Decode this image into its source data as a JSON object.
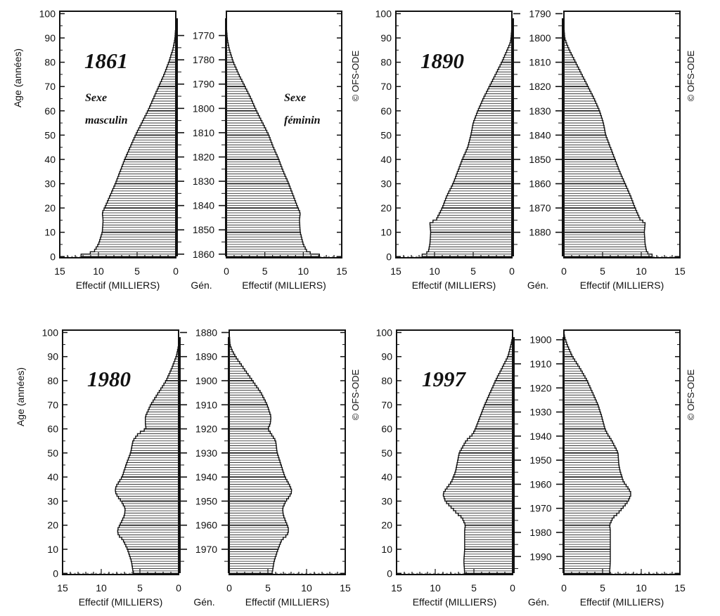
{
  "common": {
    "age_axis_title": "Age (années)",
    "effectif_label": "Effectif (MILLIERS)",
    "gen_label": "Gén.",
    "copyright": "© OFS-ODE",
    "age_ticks": [
      0,
      10,
      20,
      30,
      40,
      50,
      60,
      70,
      80,
      90,
      100
    ],
    "effectif_ticks": [
      15,
      10,
      5,
      0
    ]
  },
  "chart_data": [
    {
      "type": "bar",
      "title": "1861",
      "year": 1861,
      "male_label": [
        "Sexe",
        "masculin"
      ],
      "female_label": [
        "Sexe",
        "féminin"
      ],
      "ylabel": "Age (années)",
      "xlabel": "Effectif (MILLIERS)",
      "ylim": [
        0,
        100
      ],
      "xlim": [
        0,
        15
      ],
      "generation_ticks": [
        1770,
        1780,
        1790,
        1800,
        1810,
        1820,
        1830,
        1840,
        1850,
        1860
      ],
      "age_knots": [
        0,
        1,
        2,
        5,
        10,
        15,
        18,
        20,
        25,
        30,
        35,
        40,
        45,
        50,
        55,
        60,
        65,
        70,
        75,
        80,
        85,
        88,
        90,
        95,
        100
      ],
      "series": [
        {
          "name": "Sexe masculin",
          "values": [
            13.0,
            11.5,
            10.6,
            10.0,
            9.5,
            9.4,
            9.5,
            9.2,
            8.5,
            7.8,
            7.2,
            6.6,
            5.9,
            5.2,
            4.4,
            3.6,
            2.9,
            2.2,
            1.5,
            0.9,
            0.4,
            0.2,
            0.1,
            0.0,
            0.0
          ]
        },
        {
          "name": "Sexe féminin",
          "values": [
            12.9,
            11.3,
            10.5,
            10.0,
            9.6,
            9.5,
            9.6,
            9.3,
            8.7,
            8.1,
            7.4,
            6.8,
            6.1,
            5.5,
            4.7,
            3.9,
            3.2,
            2.4,
            1.6,
            0.9,
            0.4,
            0.2,
            0.1,
            0.0,
            0.0
          ]
        }
      ]
    },
    {
      "type": "bar",
      "title": "1890",
      "year": 1890,
      "ylabel": "Age (années)",
      "xlabel": "Effectif (MILLIERS)",
      "ylim": [
        0,
        100
      ],
      "xlim": [
        0,
        15
      ],
      "generation_ticks": [
        1790,
        1800,
        1810,
        1820,
        1830,
        1840,
        1850,
        1860,
        1870,
        1880
      ],
      "age_knots": [
        0,
        1,
        2,
        5,
        10,
        14,
        15,
        20,
        25,
        30,
        35,
        40,
        45,
        50,
        55,
        60,
        65,
        70,
        75,
        80,
        85,
        88,
        90,
        95,
        100
      ],
      "series": [
        {
          "name": "Sexe masculin",
          "values": [
            12.0,
            11.2,
            10.8,
            10.6,
            10.5,
            10.6,
            9.8,
            9.0,
            8.4,
            7.6,
            7.0,
            6.4,
            5.7,
            5.3,
            5.0,
            4.4,
            3.7,
            2.9,
            2.1,
            1.3,
            0.6,
            0.2,
            0.1,
            0.0,
            0.0
          ]
        },
        {
          "name": "Sexe féminin",
          "values": [
            11.8,
            11.0,
            10.7,
            10.5,
            10.4,
            10.5,
            9.9,
            9.2,
            8.6,
            7.9,
            7.2,
            6.6,
            6.0,
            5.4,
            5.1,
            4.6,
            3.9,
            3.1,
            2.3,
            1.5,
            0.7,
            0.3,
            0.1,
            0.0,
            0.0
          ]
        }
      ]
    },
    {
      "type": "bar",
      "title": "1980",
      "year": 1980,
      "ylabel": "Age (années)",
      "xlabel": "Effectif (MILLIERS)",
      "ylim": [
        0,
        100
      ],
      "xlim": [
        0,
        15
      ],
      "generation_ticks": [
        1880,
        1890,
        1900,
        1910,
        1920,
        1930,
        1940,
        1950,
        1960,
        1970
      ],
      "age_knots": [
        0,
        1,
        5,
        10,
        14,
        16,
        18,
        20,
        24,
        27,
        30,
        32,
        34,
        36,
        40,
        45,
        50,
        55,
        58,
        60,
        62,
        65,
        70,
        75,
        80,
        85,
        90,
        93,
        95,
        100
      ],
      "series": [
        {
          "name": "Sexe masculin",
          "values": [
            5.8,
            5.9,
            6.1,
            6.6,
            7.2,
            7.8,
            7.9,
            7.6,
            7.0,
            6.9,
            7.4,
            7.9,
            8.2,
            8.1,
            7.3,
            6.8,
            6.2,
            5.9,
            5.2,
            4.2,
            4.3,
            4.3,
            3.6,
            2.6,
            1.6,
            0.9,
            0.3,
            0.1,
            0.0,
            0.0
          ]
        },
        {
          "name": "Sexe féminin",
          "values": [
            5.5,
            5.6,
            5.8,
            6.3,
            6.8,
            7.5,
            7.7,
            7.5,
            7.0,
            6.9,
            7.3,
            7.8,
            8.1,
            7.9,
            7.2,
            6.7,
            6.2,
            6.0,
            5.4,
            5.0,
            5.3,
            5.4,
            4.9,
            4.1,
            3.0,
            1.9,
            0.8,
            0.3,
            0.1,
            0.0
          ]
        }
      ]
    },
    {
      "type": "bar",
      "title": "1997",
      "year": 1997,
      "ylabel": "Age (années)",
      "xlabel": "Effectif (MILLIERS)",
      "ylim": [
        0,
        100
      ],
      "xlim": [
        0,
        15
      ],
      "generation_ticks": [
        1900,
        1910,
        1920,
        1930,
        1940,
        1950,
        1960,
        1970,
        1980,
        1990
      ],
      "age_knots": [
        0,
        5,
        10,
        15,
        18,
        20,
        23,
        25,
        28,
        30,
        33,
        35,
        38,
        42,
        45,
        50,
        55,
        58,
        60,
        65,
        70,
        75,
        80,
        85,
        90,
        95,
        98,
        100
      ],
      "series": [
        {
          "name": "Sexe masculin",
          "values": [
            6.2,
            6.3,
            6.2,
            6.2,
            6.2,
            6.1,
            6.5,
            7.2,
            8.1,
            8.7,
            9.0,
            8.6,
            7.9,
            7.4,
            7.2,
            6.9,
            6.0,
            5.1,
            4.8,
            4.2,
            3.6,
            2.9,
            2.2,
            1.4,
            0.6,
            0.2,
            0.0,
            0.0
          ]
        },
        {
          "name": "Sexe féminin",
          "values": [
            5.9,
            6.0,
            6.0,
            6.0,
            6.0,
            5.9,
            6.3,
            7.0,
            7.8,
            8.3,
            8.7,
            8.4,
            7.7,
            7.3,
            7.1,
            7.0,
            6.2,
            5.6,
            5.3,
            4.9,
            4.4,
            3.7,
            3.0,
            2.1,
            1.1,
            0.4,
            0.1,
            0.0
          ]
        }
      ]
    }
  ]
}
